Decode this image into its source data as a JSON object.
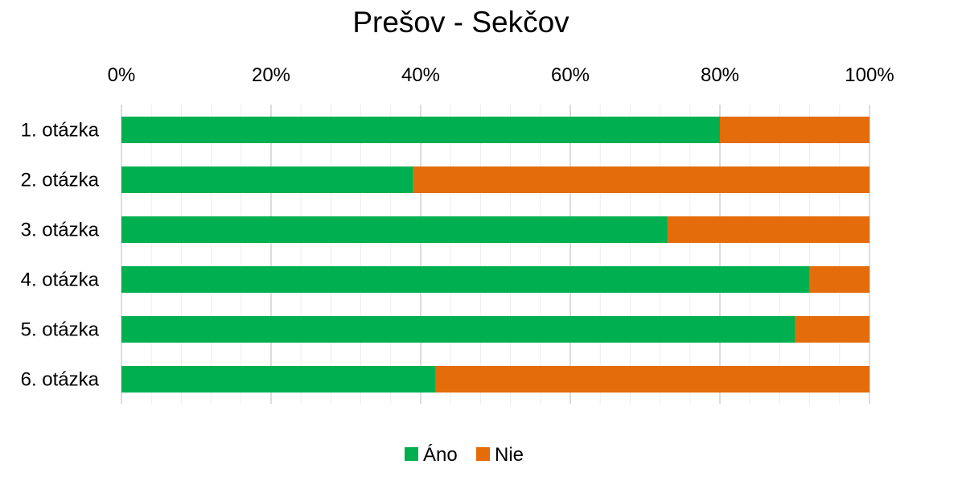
{
  "chart_data": {
    "type": "bar",
    "orientation": "horizontal",
    "stacked": "percent",
    "title": "Prešov - Sekčov",
    "categories": [
      "1. otázka",
      "2. otázka",
      "3. otázka",
      "4. otázka",
      "5. otázka",
      "6. otázka"
    ],
    "series": [
      {
        "name": "Áno",
        "color": "#00B050",
        "values": [
          80,
          39,
          73,
          92,
          90,
          42
        ]
      },
      {
        "name": "Nie",
        "color": "#E46C0A",
        "values": [
          20,
          61,
          27,
          8,
          10,
          58
        ]
      }
    ],
    "xlim": [
      0,
      100
    ],
    "ticks": [
      "0%",
      "20%",
      "40%",
      "60%",
      "80%",
      "100%"
    ],
    "tick_values": [
      0,
      20,
      40,
      60,
      80,
      100
    ],
    "x_axis_position": "top",
    "grid": true,
    "legend": "bottom"
  }
}
